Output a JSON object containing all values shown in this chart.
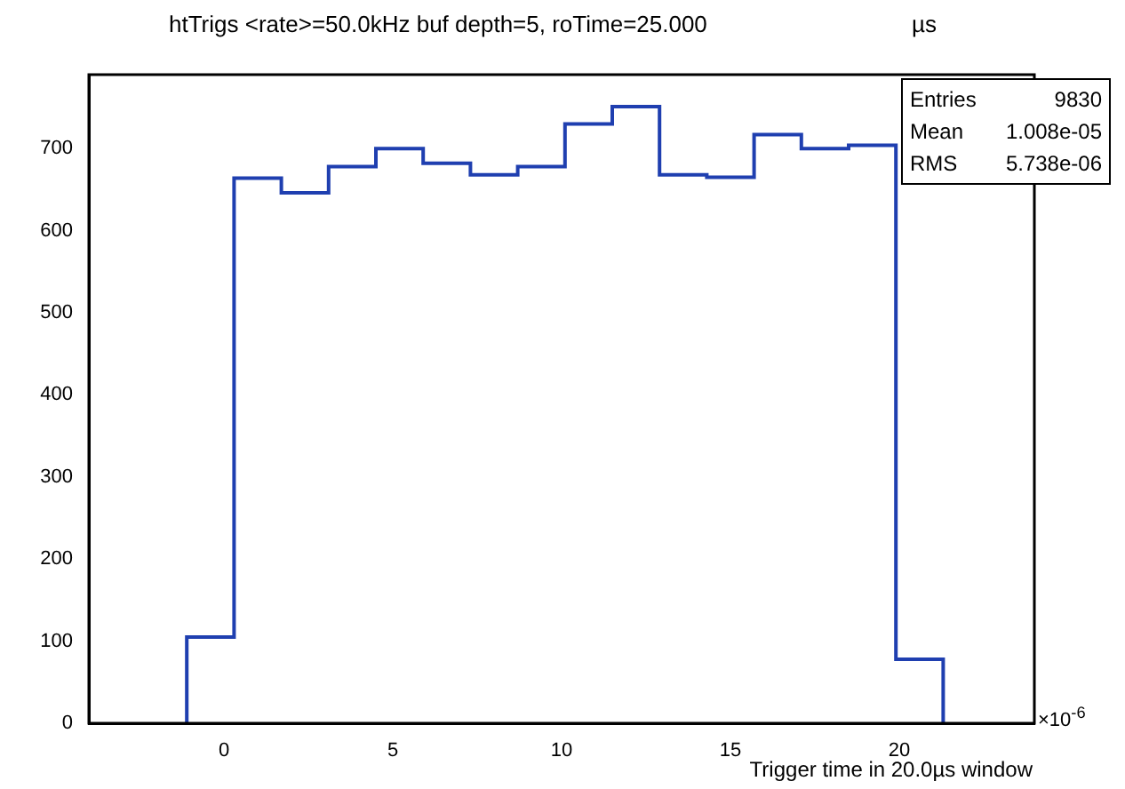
{
  "chart_data": {
    "type": "histogram",
    "title": "htTrigs <rate>=50.0kHz buf depth=5, roTime=25.000",
    "xlabel": "Trigger time in 20.0µs window",
    "bins": [
      -1.1,
      0.3,
      1.7,
      3.1,
      4.5,
      5.9,
      7.3,
      8.7,
      10.1,
      11.5,
      12.9,
      14.3,
      15.7,
      17.1,
      18.5,
      19.9,
      21.3
    ],
    "values": [
      105,
      664,
      646,
      678,
      700,
      682,
      668,
      678,
      730,
      751,
      668,
      665,
      717,
      700,
      704,
      78
    ],
    "color": "#1f3fb0",
    "xlim": [
      -4,
      24
    ],
    "xticks": [
      0,
      5,
      10,
      15,
      20
    ],
    "ylim": [
      0,
      790
    ],
    "yticks": [
      0,
      100,
      200,
      300,
      400,
      500,
      600,
      700
    ],
    "grid": false,
    "legend": false,
    "annotations": [
      "µs",
      "×10$^{-6}$",
      "Entries",
      "9830",
      "Mean",
      "1.008e-05",
      "RMS",
      "5.738e-06"
    ]
  }
}
